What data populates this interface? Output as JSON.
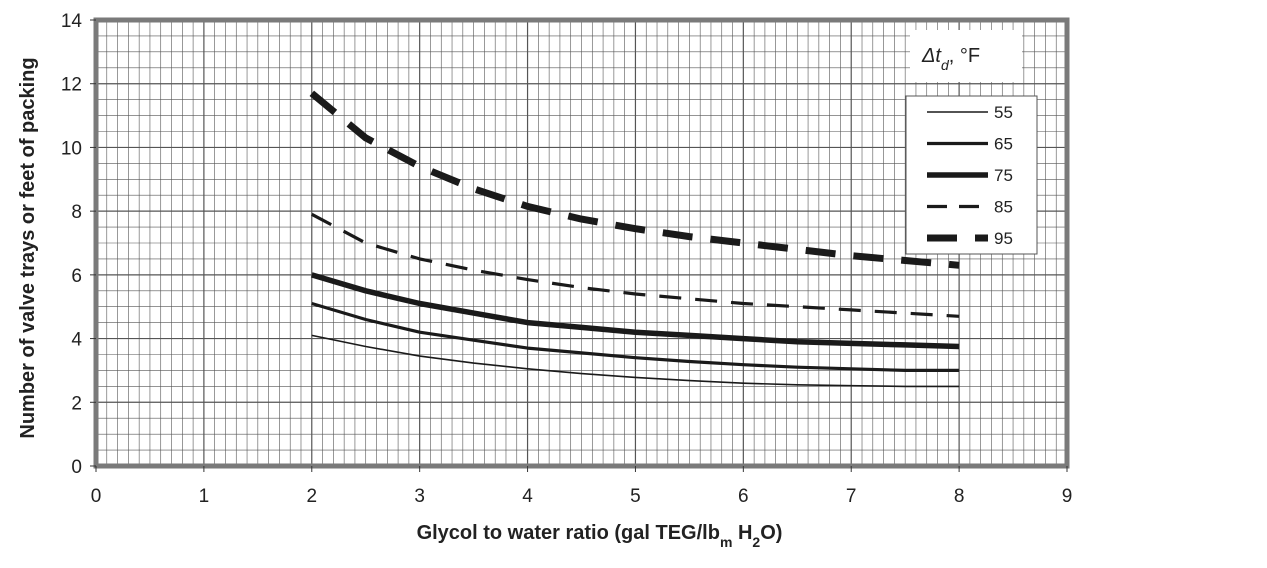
{
  "chart_data": {
    "type": "line",
    "xlabel": "Glycol to water ratio (gal TEG/lb",
    "xlabel_sub1": "m",
    "xlabel_mid": " H",
    "xlabel_sub2": "2",
    "xlabel_end": "O)",
    "ylabel": "Number of valve trays or feet of packing",
    "xlim": [
      0,
      9
    ],
    "ylim": [
      0,
      14
    ],
    "x_ticks": [
      "0",
      "1",
      "2",
      "3",
      "4",
      "5",
      "6",
      "7",
      "8",
      "9"
    ],
    "y_ticks": [
      "0",
      "2",
      "4",
      "6",
      "8",
      "10",
      "12",
      "14"
    ],
    "grid": true,
    "legend_title_symbol": "Δt",
    "legend_title_sub": "d",
    "legend_title_unit": ", °F",
    "legend_position": "top-right",
    "series": [
      {
        "name": "55",
        "style": "thin",
        "x": [
          2,
          2.5,
          3,
          3.5,
          4,
          4.5,
          5,
          5.5,
          6,
          6.5,
          7,
          7.5,
          8
        ],
        "y": [
          4.1,
          3.75,
          3.45,
          3.23,
          3.05,
          2.9,
          2.78,
          2.68,
          2.6,
          2.55,
          2.52,
          2.5,
          2.5
        ]
      },
      {
        "name": "65",
        "style": "medium",
        "x": [
          2,
          2.5,
          3,
          3.5,
          4,
          4.5,
          5,
          5.5,
          6,
          6.5,
          7,
          7.5,
          8
        ],
        "y": [
          5.1,
          4.6,
          4.2,
          3.95,
          3.7,
          3.55,
          3.4,
          3.28,
          3.18,
          3.1,
          3.05,
          3.0,
          3.0
        ]
      },
      {
        "name": "75",
        "style": "thick",
        "x": [
          2,
          2.5,
          3,
          3.5,
          4,
          4.5,
          5,
          5.5,
          6,
          6.5,
          7,
          7.5,
          8
        ],
        "y": [
          6.0,
          5.5,
          5.1,
          4.8,
          4.5,
          4.35,
          4.2,
          4.1,
          4.0,
          3.9,
          3.85,
          3.8,
          3.75
        ]
      },
      {
        "name": "85",
        "style": "dashed",
        "x": [
          2,
          2.5,
          3,
          3.5,
          4,
          4.5,
          5,
          5.5,
          6,
          6.5,
          7,
          7.5,
          8
        ],
        "y": [
          7.9,
          7.0,
          6.5,
          6.15,
          5.85,
          5.6,
          5.4,
          5.25,
          5.1,
          5.0,
          4.9,
          4.8,
          4.7
        ]
      },
      {
        "name": "95",
        "style": "thick-dashed",
        "x": [
          2,
          2.5,
          3,
          3.5,
          4,
          4.5,
          5,
          5.5,
          6,
          6.5,
          7,
          7.5,
          8
        ],
        "y": [
          11.7,
          10.3,
          9.4,
          8.7,
          8.15,
          7.75,
          7.45,
          7.2,
          7.0,
          6.8,
          6.6,
          6.45,
          6.3
        ]
      }
    ]
  }
}
